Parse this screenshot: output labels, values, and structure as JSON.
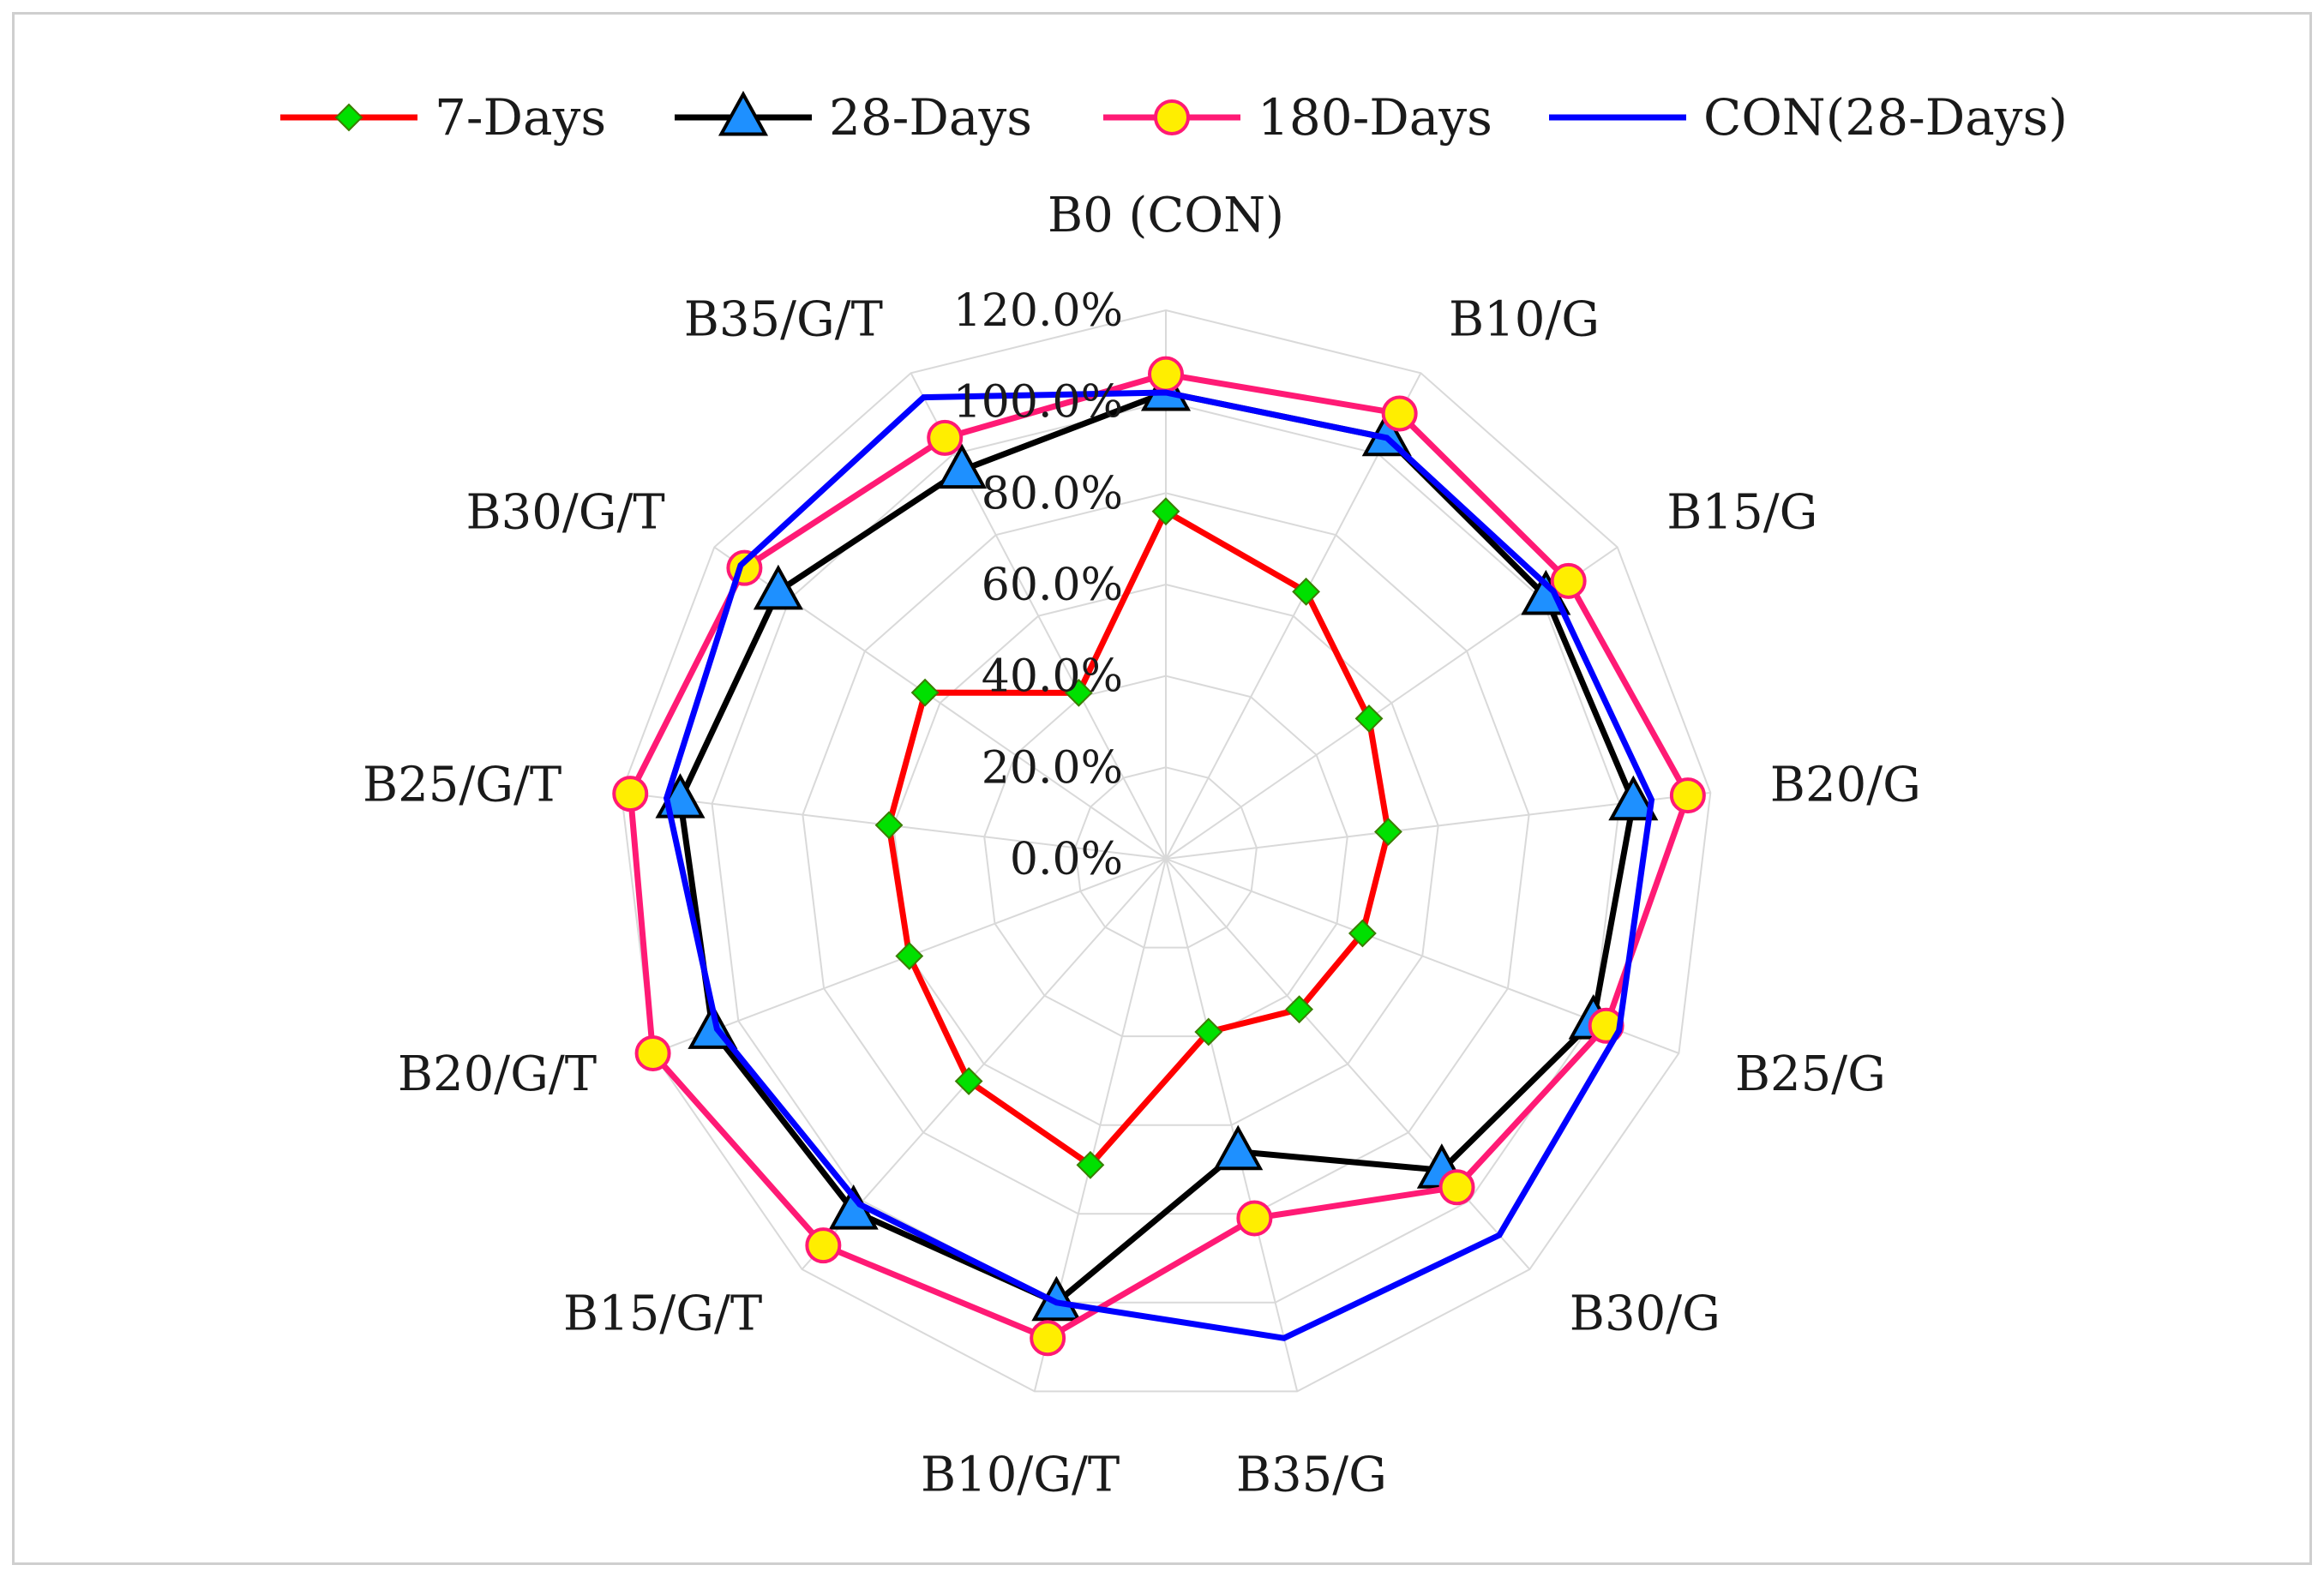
{
  "chart_data": {
    "type": "radar",
    "title": "",
    "categories": [
      "B0 (CON)",
      "B10/G",
      "B15/G",
      "B20/G",
      "B25/G",
      "B30/G",
      "B35/G",
      "B10/G/T",
      "B15/G/T",
      "B20/G/T",
      "B25/G/T",
      "B30/G/T",
      "B35/G/T"
    ],
    "ticks": [
      "0.0%",
      "20.0%",
      "40.0%",
      "60.0%",
      "80.0%",
      "100.0%",
      "120.0%"
    ],
    "rlim": [
      0,
      120
    ],
    "grid": true,
    "legend_position": "top",
    "series": [
      {
        "name": "7-Days",
        "color": "#ff0000",
        "marker": "diamond",
        "marker_color": "#00e000",
        "values": [
          76,
          66,
          54,
          49,
          46,
          44,
          39,
          69,
          65,
          60,
          61,
          64,
          41
        ]
      },
      {
        "name": "28-Days",
        "color": "#000000",
        "marker": "triangle",
        "marker_color": "#1e90ff",
        "values": [
          102,
          104,
          101,
          103,
          100,
          91,
          66,
          100,
          103,
          106,
          107,
          103,
          96
        ]
      },
      {
        "name": "180-Days",
        "color": "#ff1a75",
        "marker": "circle",
        "marker_color": "#ffee00",
        "values": [
          106,
          110,
          107,
          115,
          103,
          96,
          81,
          108,
          113,
          120,
          118,
          112,
          104
        ]
      },
      {
        "name": "CON(28-Days)",
        "color": "#0000ff",
        "marker": "none",
        "marker_color": "",
        "values": [
          102,
          104,
          103,
          107,
          106,
          110,
          108,
          100,
          101,
          105,
          110,
          113,
          114
        ]
      }
    ]
  }
}
